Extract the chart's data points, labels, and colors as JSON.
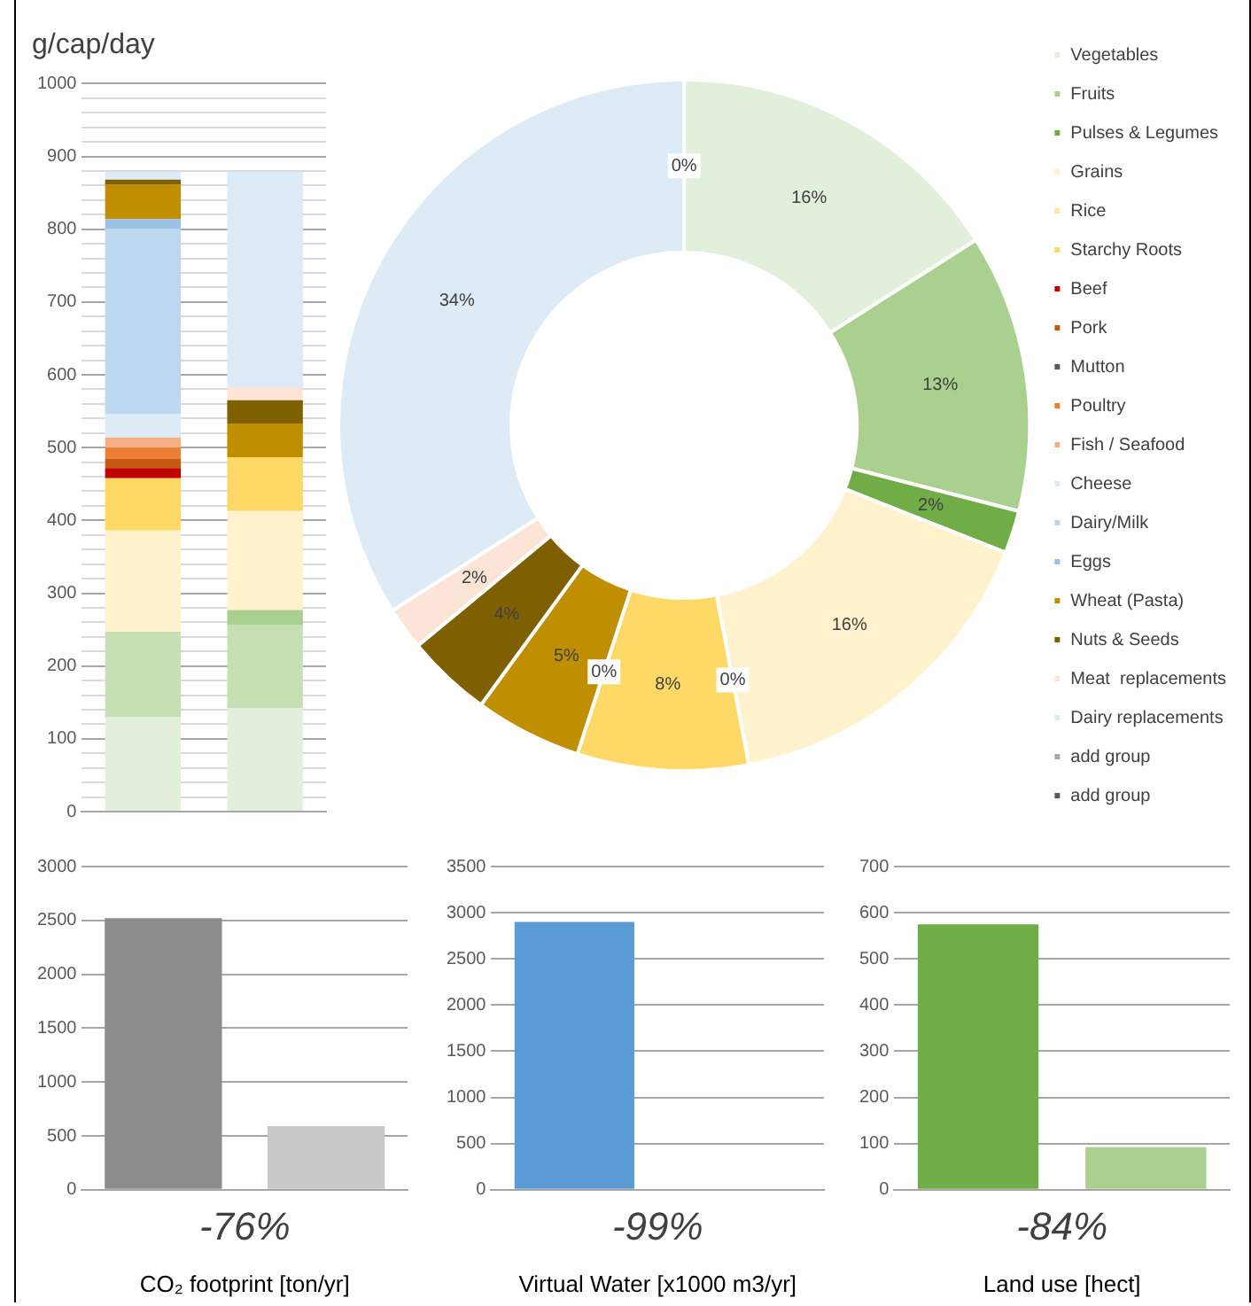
{
  "chart_data": [
    {
      "type": "bar",
      "title": "g/cap/day",
      "stacked": true,
      "categories": [
        null,
        null
      ],
      "ylim": [
        0,
        1000
      ],
      "grid": "y",
      "legend": false,
      "yticks": [
        0,
        {
          "value": 20,
          "label": null
        },
        {
          "value": 40,
          "label": null
        },
        {
          "value": 60,
          "label": null
        },
        {
          "value": 80,
          "label": null
        },
        100,
        {
          "value": 120,
          "label": null
        },
        {
          "value": 140,
          "label": null
        },
        {
          "value": 160,
          "label": null
        },
        {
          "value": 180,
          "label": null
        },
        200,
        {
          "value": 220,
          "label": null
        },
        {
          "value": 240,
          "label": null
        },
        {
          "value": 260,
          "label": null
        },
        {
          "value": 280,
          "label": null
        },
        300,
        {
          "value": 320,
          "label": null
        },
        {
          "value": 340,
          "label": null
        },
        {
          "value": 360,
          "label": null
        },
        {
          "value": 380,
          "label": null
        },
        400,
        {
          "value": 420,
          "label": null
        },
        {
          "value": 440,
          "label": null
        },
        {
          "value": 460,
          "label": null
        },
        {
          "value": 480,
          "label": null
        },
        500,
        {
          "value": 520,
          "label": null
        },
        {
          "value": 540,
          "label": null
        },
        {
          "value": 560,
          "label": null
        },
        {
          "value": 580,
          "label": null
        },
        600,
        {
          "value": 620,
          "label": null
        },
        {
          "value": 640,
          "label": null
        },
        {
          "value": 660,
          "label": null
        },
        {
          "value": 680,
          "label": null
        },
        700,
        {
          "value": 720,
          "label": null
        },
        {
          "value": 740,
          "label": null
        },
        {
          "value": 760,
          "label": null
        },
        {
          "value": 780,
          "label": null
        },
        800,
        {
          "value": 820,
          "label": null
        },
        {
          "value": 840,
          "label": null
        },
        {
          "value": 860,
          "label": null
        },
        {
          "value": 880,
          "label": null
        },
        900,
        {
          "value": 920,
          "label": null
        },
        {
          "value": 940,
          "label": null
        },
        {
          "value": 960,
          "label": null
        },
        {
          "value": 980,
          "label": null
        },
        1000
      ],
      "series": [
        {
          "color": "#e2efda",
          "values": [
            130,
            142
          ]
        },
        {
          "color": "#c6e0b4",
          "values": [
            117,
            114
          ]
        },
        {
          "color": "#a9d08e",
          "values": [
            0,
            21
          ]
        },
        {
          "color": "#fff2cc",
          "values": [
            139,
            136
          ]
        },
        {
          "color": "#ffe699",
          "values": [
            0,
            0
          ]
        },
        {
          "color": "#ffd966",
          "values": [
            72,
            74
          ]
        },
        {
          "color": "#c00000",
          "values": [
            14,
            0
          ]
        },
        {
          "color": "#c55a11",
          "values": [
            13,
            0
          ]
        },
        {
          "color": "#595959",
          "values": [
            0,
            0
          ]
        },
        {
          "color": "#ed7d31",
          "values": [
            15,
            0
          ]
        },
        {
          "color": "#f4b084",
          "values": [
            14,
            0
          ]
        },
        {
          "color": "#ddebf7",
          "values": [
            32,
            0
          ]
        },
        {
          "color": "#bdd7ee",
          "values": [
            255,
            0
          ]
        },
        {
          "color": "#9bc2e6",
          "values": [
            13,
            0
          ]
        },
        {
          "color": "#bf8f00",
          "values": [
            47,
            46
          ]
        },
        {
          "color": "#7f6000",
          "values": [
            7,
            32
          ]
        },
        {
          "color": "#fce4d6",
          "values": [
            0,
            18
          ]
        },
        {
          "color": "#ddebf7",
          "values": [
            11,
            296
          ]
        },
        {
          "color": "#a6a6a6",
          "values": [
            0,
            0
          ]
        },
        {
          "color": "#595959",
          "values": [
            0,
            0
          ]
        }
      ]
    },
    {
      "type": "donut",
      "legend": "right",
      "categories": [
        "Vegetables",
        "Fruits",
        "Pulses & Legumes",
        "Grains",
        "Rice",
        "Starchy Roots",
        "Beef",
        "Pork",
        "Mutton",
        "Poultry",
        "Fish / Seafood",
        "Cheese",
        "Dairy/Milk",
        "Eggs",
        "Wheat (Pasta)",
        "Nuts & Seeds",
        "Meat  replacements",
        "Dairy replacements",
        "add group",
        "add group"
      ],
      "values": [
        16,
        13,
        2,
        16,
        0,
        8,
        0,
        0,
        0,
        0,
        0,
        0,
        0,
        0,
        5,
        4,
        2,
        34,
        0,
        0
      ],
      "value_labels": [
        "16%",
        "13%",
        "2%",
        "16%",
        "0%",
        "8%",
        null,
        null,
        null,
        "0%",
        null,
        null,
        null,
        null,
        "5%",
        "4%",
        "2%",
        "34%",
        null,
        "0%"
      ],
      "colors": [
        "#e2efda",
        "#a9d08e",
        "#70ad47",
        "#fff2cc",
        "#ffe699",
        "#ffd966",
        "#c00000",
        "#c55a11",
        "#595959",
        "#ed7d31",
        "#f4b084",
        "#ddebf7",
        "#bdd7ee",
        "#9bc2e6",
        "#bf8f00",
        "#7f6000",
        "#fce4d6",
        "#ddebf7",
        "#a6a6a6",
        "#595959"
      ]
    },
    {
      "type": "bar",
      "categories": [
        null,
        null
      ],
      "values": [
        2520,
        590
      ],
      "colors": [
        "#8c8c8c",
        "#c8c8c8"
      ],
      "ylim": [
        0,
        3000
      ],
      "yticks": [
        0,
        500,
        1000,
        1500,
        2000,
        2500,
        3000
      ],
      "grid": "y",
      "legend": false,
      "xlabel": "CO₂ footprint [ton/yr]",
      "annotations": [
        "-76%"
      ]
    },
    {
      "type": "bar",
      "categories": [
        null,
        null
      ],
      "values": [
        2900,
        null
      ],
      "colors": [
        "#5b9bd5",
        "#9dc3e6"
      ],
      "ylim": [
        0,
        3500
      ],
      "yticks": [
        0,
        500,
        1000,
        1500,
        2000,
        2500,
        3000,
        3500
      ],
      "grid": "y",
      "legend": false,
      "xlabel": "Virtual Water [x1000 m3/yr]",
      "annotations": [
        "-99%"
      ]
    },
    {
      "type": "bar",
      "categories": [
        null,
        null
      ],
      "values": [
        575,
        92
      ],
      "colors": [
        "#70ad47",
        "#a9d08e"
      ],
      "ylim": [
        0,
        700
      ],
      "yticks": [
        0,
        100,
        200,
        300,
        400,
        500,
        600,
        700
      ],
      "grid": "y",
      "legend": false,
      "xlabel": "Land use [hect]",
      "annotations": [
        "-84%"
      ]
    }
  ]
}
